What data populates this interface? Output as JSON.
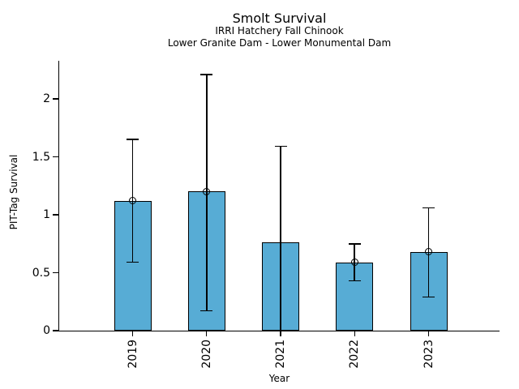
{
  "header": {
    "title": "Smolt Survival",
    "subtitle1": "IRRI Hatchery Fall Chinook",
    "subtitle2": "Lower Granite Dam - Lower Monumental Dam"
  },
  "chart_data": {
    "type": "bar",
    "title": "Smolt Survival",
    "subtitle_lines": [
      "IRRI Hatchery Fall Chinook",
      "Lower Granite Dam - Lower Monumental Dam"
    ],
    "xlabel": "Year",
    "ylabel": "PIT-Tag Survival",
    "categories": [
      "2019",
      "2020",
      "2021",
      "2022",
      "2023"
    ],
    "values": [
      1.12,
      1.2,
      0.76,
      0.59,
      0.68
    ],
    "error_low": [
      0.59,
      0.17,
      0.0,
      0.43,
      0.29
    ],
    "error_high": [
      1.65,
      2.21,
      1.59,
      0.75,
      1.06
    ],
    "point_marker_shown": [
      true,
      true,
      false,
      true,
      true
    ],
    "yticks": [
      0,
      0.5,
      1,
      1.5,
      2
    ],
    "ytick_labels": [
      "0",
      "0.5",
      "1",
      "1.5",
      "2"
    ],
    "ylim": [
      0,
      2.33
    ],
    "grid": false,
    "legend": null,
    "bar_color": "#57ACD5",
    "bar_edge_color": "#000000",
    "errorbar_color": "#000000",
    "axis_color": "#000000"
  }
}
